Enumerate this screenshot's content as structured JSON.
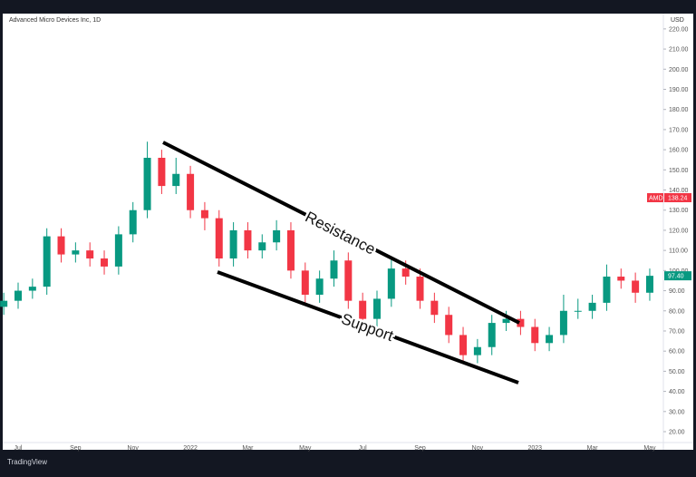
{
  "chart_data": {
    "type": "candlestick",
    "title": "Advanced Micro Devices Inc, 1D",
    "currency": "USD",
    "symbol": "AMD",
    "badges": [
      {
        "label": "138.24",
        "color": "#f23645"
      },
      {
        "label": "97.40",
        "color": "#089981"
      }
    ],
    "annotations": [
      "Resistance",
      "Support"
    ],
    "brand": "TradingView",
    "categories": [
      null,
      "Jul",
      null,
      null,
      null,
      "Sep",
      null,
      null,
      null,
      "Nov",
      null,
      null,
      null,
      "2022",
      null,
      null,
      null,
      "Mar",
      null,
      null,
      null,
      "May",
      null,
      null,
      null,
      "Jul",
      null,
      null,
      null,
      "Sep",
      null,
      null,
      null,
      "Nov",
      null,
      null,
      null,
      "2023",
      null,
      null,
      null,
      "Mar",
      null,
      null,
      null,
      "May"
    ],
    "open": [
      82,
      85,
      90,
      92,
      117,
      108,
      110,
      106,
      102,
      118,
      130,
      156,
      142,
      148,
      130,
      126,
      106,
      120,
      110,
      114,
      120,
      100,
      88,
      96,
      105,
      85,
      76,
      86,
      101,
      97,
      85,
      78,
      68,
      58,
      62,
      74,
      76,
      72,
      64,
      68,
      80,
      80,
      84,
      97,
      95,
      89
    ],
    "high": [
      89,
      94,
      96,
      121,
      121,
      114,
      114,
      110,
      122,
      134,
      164,
      160,
      156,
      152,
      134,
      130,
      124,
      124,
      118,
      125,
      124,
      104,
      100,
      110,
      109,
      89,
      90,
      106,
      105,
      101,
      89,
      82,
      72,
      66,
      78,
      80,
      80,
      76,
      72,
      88,
      86,
      88,
      103,
      101,
      99,
      101
    ],
    "low": [
      78,
      81,
      86,
      88,
      104,
      104,
      102,
      98,
      98,
      114,
      126,
      138,
      138,
      126,
      120,
      102,
      102,
      106,
      106,
      110,
      96,
      84,
      84,
      92,
      81,
      72,
      72,
      82,
      93,
      81,
      74,
      64,
      55,
      54,
      58,
      70,
      68,
      60,
      60,
      64,
      76,
      76,
      80,
      91,
      84,
      85
    ],
    "close": [
      85,
      90,
      92,
      117,
      108,
      110,
      106,
      102,
      118,
      130,
      156,
      142,
      148,
      130,
      126,
      106,
      120,
      110,
      114,
      120,
      100,
      88,
      96,
      105,
      85,
      76,
      86,
      101,
      97,
      85,
      78,
      68,
      58,
      62,
      74,
      76,
      72,
      64,
      68,
      80,
      80,
      84,
      97,
      95,
      89,
      97.4
    ],
    "up_color": "#089981",
    "down_color": "#f23645",
    "ylim": [
      14.6,
      227.6
    ],
    "yticks": [
      {
        "value": 20,
        "label": "20.00"
      },
      {
        "value": 30,
        "label": "30.00"
      },
      {
        "value": 40,
        "label": "40.00"
      },
      {
        "value": 50,
        "label": "50.00"
      },
      {
        "value": 60,
        "label": "60.00"
      },
      {
        "value": 70,
        "label": "70.00"
      },
      {
        "value": 80,
        "label": "80.00"
      },
      {
        "value": 90,
        "label": "90.00"
      },
      {
        "value": 100,
        "label": "100.00"
      },
      {
        "value": 110,
        "label": "110.00"
      },
      {
        "value": 120,
        "label": "120.00"
      },
      {
        "value": 130,
        "label": "130.00"
      },
      {
        "value": 140,
        "label": "140.00"
      },
      {
        "value": 150,
        "label": "150.00"
      },
      {
        "value": 160,
        "label": "160.00"
      },
      {
        "value": 170,
        "label": "170.00"
      },
      {
        "value": 180,
        "label": "180.00"
      },
      {
        "value": 190,
        "label": "190.00"
      },
      {
        "value": 200,
        "label": "200.00"
      },
      {
        "value": 210,
        "label": "210.00"
      },
      {
        "value": 220,
        "label": "220.00"
      }
    ]
  }
}
